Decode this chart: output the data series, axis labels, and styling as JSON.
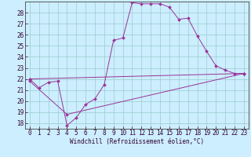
{
  "xlabel": "Windchill (Refroidissement éolien,°C)",
  "xlim": [
    -0.5,
    23.5
  ],
  "ylim": [
    17.5,
    29.0
  ],
  "xticks": [
    0,
    1,
    2,
    3,
    4,
    5,
    6,
    7,
    8,
    9,
    10,
    11,
    12,
    13,
    14,
    15,
    16,
    17,
    18,
    19,
    20,
    21,
    22,
    23
  ],
  "yticks": [
    18,
    19,
    20,
    21,
    22,
    23,
    24,
    25,
    26,
    27,
    28
  ],
  "bg_color": "#cceeff",
  "line_color": "#993399",
  "grid_color": "#99cccc",
  "line1_x": [
    0,
    1,
    2,
    3,
    4,
    5,
    6,
    7,
    8,
    9,
    10,
    11,
    12,
    13,
    14,
    15,
    16,
    17,
    18,
    19,
    20,
    21,
    22,
    23
  ],
  "line1_y": [
    22.0,
    21.2,
    21.7,
    21.8,
    17.8,
    18.5,
    19.7,
    20.2,
    21.5,
    25.5,
    25.7,
    28.9,
    28.8,
    28.8,
    28.8,
    28.5,
    27.4,
    27.5,
    25.9,
    24.5,
    23.2,
    22.8,
    22.5,
    22.5
  ],
  "line2_x": [
    0,
    23
  ],
  "line2_y": [
    22.0,
    22.5
  ],
  "line3_x": [
    0,
    4,
    23
  ],
  "line3_y": [
    21.8,
    18.8,
    22.5
  ],
  "tick_fontsize": 5.5,
  "xlabel_fontsize": 5.5
}
